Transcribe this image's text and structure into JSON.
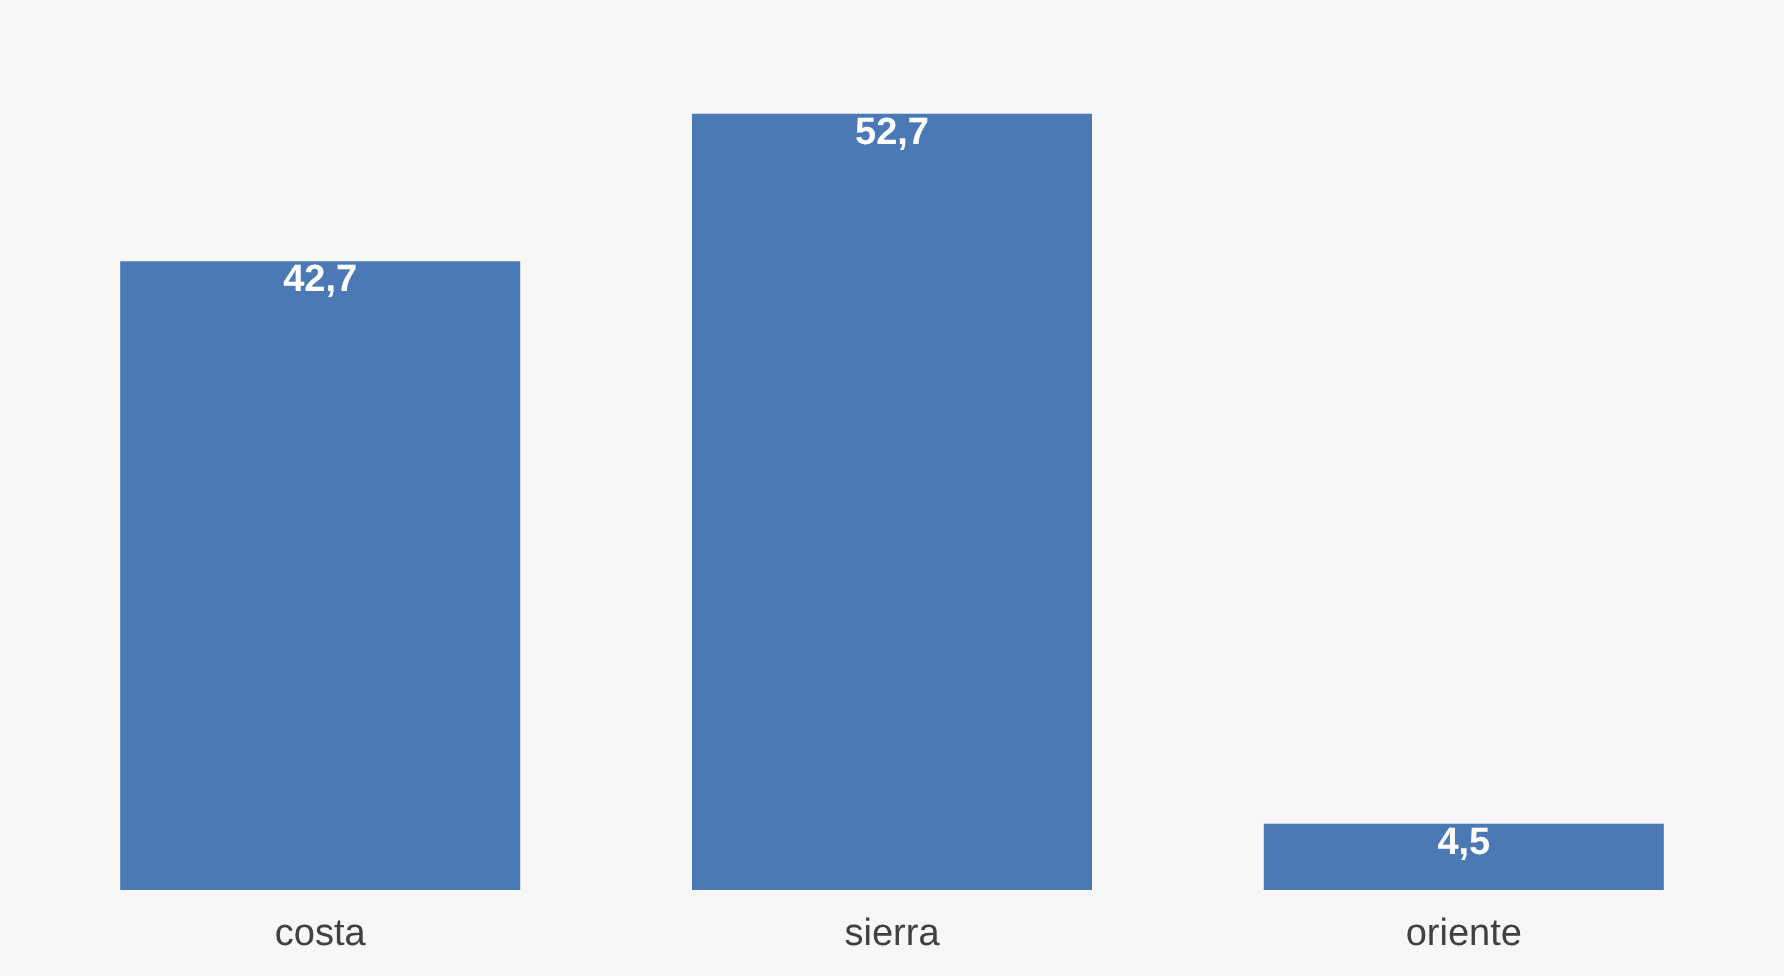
{
  "chart_data": {
    "type": "bar",
    "categories": [
      "costa",
      "sierra",
      "oriente"
    ],
    "values": [
      42.7,
      52.7,
      4.5
    ],
    "value_labels": [
      "42,7",
      "52,7",
      "4,5"
    ],
    "color": "#4a79b5"
  }
}
